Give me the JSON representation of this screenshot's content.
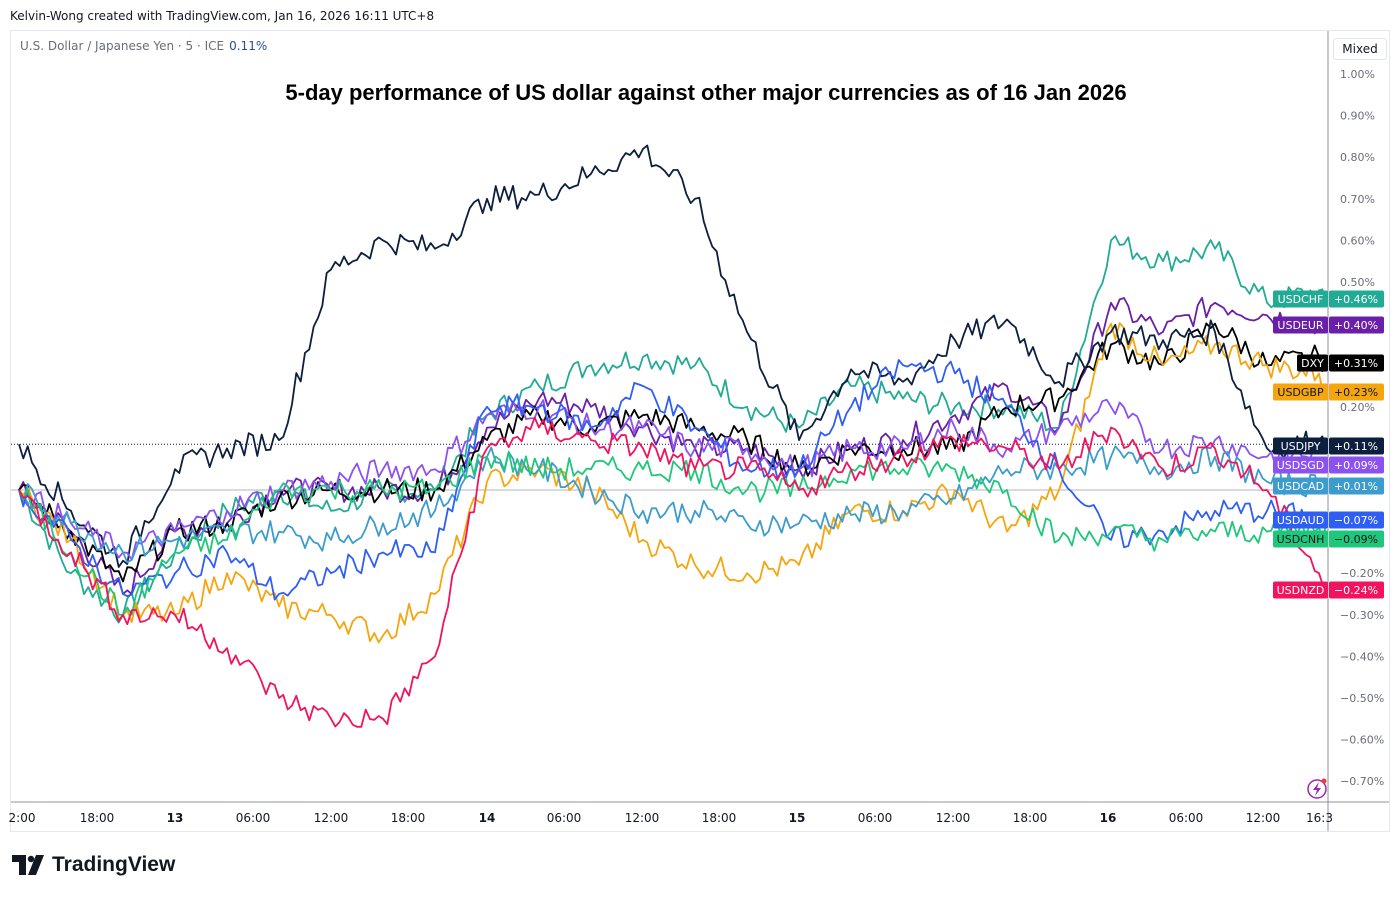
{
  "credit": "Kelvin-Wong created with TradingView.com, Jan 16, 2026 16:11 UTC+8",
  "symbol": {
    "name": "U.S. Dollar / Japanese Yen · 5 · ICE",
    "change": "0.11%"
  },
  "scale_mode_button": "Mixed",
  "logo_text": "TradingView",
  "chart_data": {
    "type": "line",
    "title": "5-day performance of US dollar against other major currencies as of 16 Jan 2026",
    "x": [
      "01-12 12:00",
      "01-12 16:00",
      "01-12 20:00",
      "01-13 00:00",
      "01-13 04:00",
      "01-13 08:00",
      "01-13 12:00",
      "01-13 16:00",
      "01-13 20:00",
      "01-14 00:00",
      "01-14 04:00",
      "01-14 08:00",
      "01-14 12:00",
      "01-14 16:00",
      "01-14 20:00",
      "01-15 00:00",
      "01-15 04:00",
      "01-15 08:00",
      "01-15 12:00",
      "01-15 16:00",
      "01-15 20:00",
      "01-16 00:00",
      "01-16 04:00",
      "01-16 08:00",
      "01-16 12:00",
      "01-16 16:00",
      "01-16 16:30"
    ],
    "x_tick_labels": [
      "2:00",
      "18:00",
      "13",
      "06:00",
      "12:00",
      "18:00",
      "14",
      "06:00",
      "12:00",
      "18:00",
      "15",
      "06:00",
      "12:00",
      "18:00",
      "16",
      "06:00",
      "12:00",
      "16:3"
    ],
    "y_unit": "%",
    "ylim": [
      -0.75,
      1.05
    ],
    "y_tick_labels": [
      "1.00%",
      "0.90%",
      "0.80%",
      "0.70%",
      "0.60%",
      "0.50%",
      "0.20%",
      "−0.20%",
      "−0.30%",
      "−0.40%",
      "−0.50%",
      "−0.60%",
      "−0.70%"
    ],
    "grid": false,
    "legend": "right-axis tags",
    "series": [
      {
        "name": "USDCHF",
        "last": "+0.46%",
        "color": "#22ab94",
        "text": "#ffffff",
        "values": [
          0,
          -0.2,
          -0.3,
          -0.15,
          -0.05,
          0.0,
          -0.05,
          0.0,
          0.0,
          0.18,
          0.25,
          0.3,
          0.32,
          0.3,
          0.2,
          0.15,
          0.25,
          0.22,
          0.2,
          0.2,
          0.15,
          0.6,
          0.55,
          0.58,
          0.45,
          0.48,
          0.46
        ]
      },
      {
        "name": "USDEUR",
        "last": "+0.40%",
        "color": "#6a1fa8",
        "text": "#ffffff",
        "values": [
          0,
          -0.1,
          -0.25,
          -0.1,
          -0.08,
          0,
          0,
          0,
          0,
          0.15,
          0.22,
          0.2,
          0.15,
          0.1,
          0.1,
          0.05,
          0.1,
          0.12,
          0.18,
          0.25,
          0.15,
          0.45,
          0.38,
          0.45,
          0.42,
          0.4,
          0.4
        ]
      },
      {
        "name": "DXY",
        "last": "+0.31%",
        "color": "#000000",
        "text": "#ffffff",
        "values": [
          0,
          -0.1,
          -0.22,
          -0.1,
          -0.08,
          -0.02,
          0,
          0,
          0,
          0.12,
          0.18,
          0.15,
          0.18,
          0.15,
          0.12,
          0.05,
          0.1,
          0.1,
          0.1,
          0.2,
          0.22,
          0.35,
          0.3,
          0.4,
          0.3,
          0.32,
          0.31
        ]
      },
      {
        "name": "USDGBP",
        "last": "+0.23%",
        "color": "#f5a60f",
        "text": "#131722",
        "values": [
          0,
          -0.12,
          -0.3,
          -0.3,
          -0.2,
          -0.28,
          -0.3,
          -0.35,
          -0.25,
          0.02,
          0.05,
          0,
          -0.12,
          -0.18,
          -0.2,
          -0.18,
          -0.05,
          -0.05,
          0,
          -0.1,
          0,
          0.4,
          0.3,
          0.35,
          0.3,
          0.28,
          0.23
        ]
      },
      {
        "name": "USDJPY",
        "last": "+0.11%",
        "color": "#0c1f3f",
        "text": "#ffffff",
        "values": [
          0.11,
          -0.05,
          -0.17,
          0.05,
          0.1,
          0.12,
          0.53,
          0.6,
          0.58,
          0.7,
          0.71,
          0.76,
          0.82,
          0.7,
          0.38,
          0.12,
          0.29,
          0.26,
          0.36,
          0.41,
          0.26,
          0.38,
          0.36,
          0.38,
          0.1,
          0.12,
          0.11
        ]
      },
      {
        "name": "USDSGD",
        "last": "+0.09%",
        "color": "#8c52f0",
        "text": "#ffffff",
        "values": [
          0,
          -0.08,
          -0.15,
          -0.1,
          -0.05,
          0,
          0.02,
          0.05,
          0.05,
          0.18,
          0.2,
          0.15,
          0.15,
          0.1,
          0.1,
          0.05,
          0.1,
          0.1,
          0.15,
          0.1,
          0.15,
          0.2,
          0.1,
          0.12,
          0.08,
          0.09,
          0.09
        ]
      },
      {
        "name": "USDCAD",
        "last": "+0.01%",
        "color": "#3c9ccd",
        "text": "#ffffff",
        "values": [
          0,
          -0.08,
          -0.15,
          -0.12,
          -0.1,
          -0.1,
          -0.12,
          -0.08,
          -0.05,
          0.08,
          0.05,
          0,
          -0.05,
          -0.05,
          -0.08,
          -0.08,
          -0.06,
          -0.05,
          -0.02,
          0.05,
          0.05,
          0.08,
          0.05,
          0.08,
          0.02,
          0.01,
          0.01
        ]
      },
      {
        "name": "USDAUD",
        "last": "−0.07%",
        "color": "#2f5ef5",
        "text": "#ffffff",
        "values": [
          0,
          -0.12,
          -0.25,
          -0.2,
          -0.15,
          -0.25,
          -0.2,
          -0.15,
          -0.15,
          0.2,
          0.2,
          0.15,
          0.25,
          0.15,
          0.05,
          0.05,
          0.2,
          0.3,
          0.28,
          0.2,
          0.05,
          -0.12,
          -0.1,
          -0.05,
          -0.05,
          -0.07,
          -0.07
        ]
      },
      {
        "name": "USDCNH",
        "last": "−0.09%",
        "color": "#1fc77a",
        "text": "#131722",
        "values": [
          0,
          -0.15,
          -0.3,
          -0.15,
          -0.12,
          0,
          0,
          0,
          0,
          0.08,
          0.05,
          0.05,
          0.05,
          0.05,
          0,
          0,
          0.05,
          0.05,
          0.05,
          0,
          -0.12,
          -0.1,
          -0.12,
          -0.1,
          -0.1,
          -0.09,
          -0.09
        ]
      },
      {
        "name": "USDNZD",
        "last": "−0.24%",
        "color": "#f2135e",
        "text": "#ffffff",
        "values": [
          0,
          -0.15,
          -0.3,
          -0.3,
          -0.38,
          -0.5,
          -0.55,
          -0.55,
          -0.4,
          0.1,
          0.15,
          0.12,
          0.1,
          0.05,
          0.05,
          0,
          0.05,
          0.08,
          0.12,
          0.1,
          0.05,
          0.15,
          0.05,
          0.1,
          0,
          -0.2,
          -0.24
        ]
      }
    ]
  }
}
